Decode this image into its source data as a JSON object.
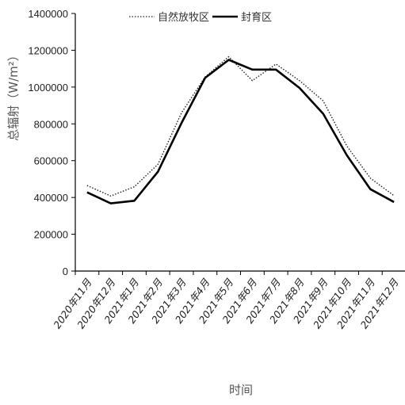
{
  "chart_data": {
    "type": "line",
    "title": "",
    "xlabel": "时间",
    "ylabel": "总辐射（W/m²）",
    "ylim": [
      0,
      1400000
    ],
    "yticks": [
      "0",
      "200000",
      "400000",
      "600000",
      "800000",
      "1000000",
      "1200000",
      "1400000"
    ],
    "categories": [
      "2020年11月",
      "2020年12月",
      "2021年1月",
      "2021年2月",
      "2021年3月",
      "2021年4月",
      "2021年5月",
      "2021年6月",
      "2021年7月",
      "2021年8月",
      "2021年9月",
      "2021年10月",
      "2021年11月",
      "2021年12月"
    ],
    "legend_position": "top",
    "grid": false,
    "series": [
      {
        "name": "自然放牧区",
        "style": "dotted",
        "color": "#222222",
        "values": [
          465000,
          408000,
          458000,
          580000,
          860000,
          1055000,
          1165000,
          1035000,
          1125000,
          1035000,
          925000,
          680000,
          505000,
          410000
        ]
      },
      {
        "name": "封育区",
        "style": "solid",
        "color": "#000000",
        "values": [
          428000,
          368000,
          382000,
          540000,
          805000,
          1050000,
          1148000,
          1095000,
          1095000,
          995000,
          855000,
          630000,
          445000,
          375000
        ]
      }
    ]
  }
}
